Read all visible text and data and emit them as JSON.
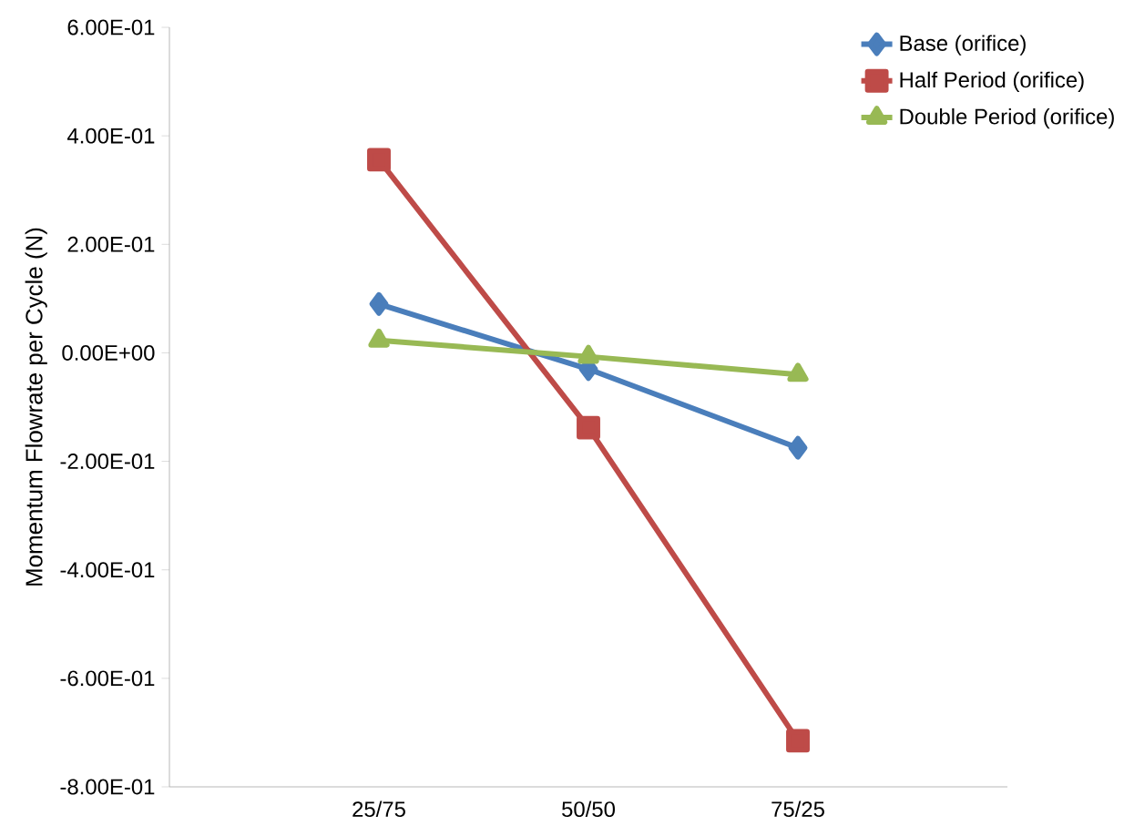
{
  "chart_data": {
    "type": "line",
    "ylabel": "Momentum Flowrate per Cycle (N)",
    "categories": [
      "25/75",
      "50/50",
      "75/25"
    ],
    "series": [
      {
        "name": "Base (orifice)",
        "color": "#4a7ebb",
        "marker": "diamond",
        "values": [
          0.09,
          -0.03,
          -0.175
        ]
      },
      {
        "name": "Half Period (orifice)",
        "color": "#be4b48",
        "marker": "square",
        "values": [
          0.356,
          -0.138,
          -0.715
        ]
      },
      {
        "name": "Double Period (orifice)",
        "color": "#98b954",
        "marker": "triangle",
        "values": [
          0.023,
          -0.007,
          -0.04
        ]
      }
    ],
    "ylim": [
      -0.8,
      0.6
    ],
    "yticks": [
      {
        "value": -0.8,
        "label": "-8.00E-01"
      },
      {
        "value": -0.6,
        "label": "-6.00E-01"
      },
      {
        "value": -0.4,
        "label": "-4.00E-01"
      },
      {
        "value": -0.2,
        "label": "-2.00E-01"
      },
      {
        "value": 0,
        "label": "0.00E+00"
      },
      {
        "value": 0.2,
        "label": "2.00E-01"
      },
      {
        "value": 0.4,
        "label": "4.00E-01"
      },
      {
        "value": 0.6,
        "label": "6.00E-01"
      }
    ],
    "grid": false,
    "legend": "top right",
    "line_style": "solid"
  }
}
